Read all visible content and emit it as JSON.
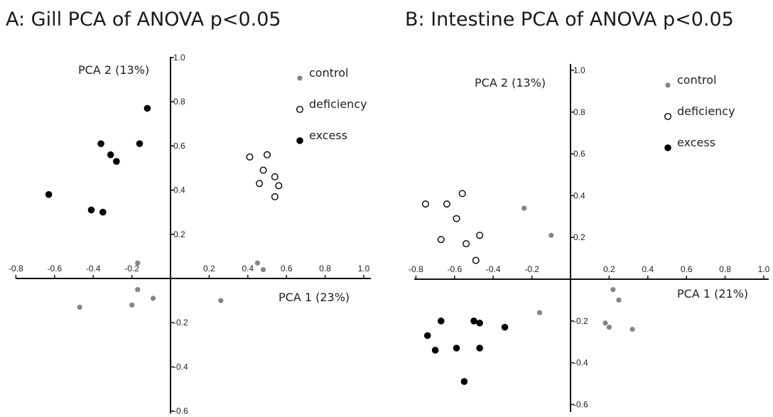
{
  "chart_data": [
    {
      "type": "scatter",
      "title": "A: Gill PCA of ANOVA p<0.05",
      "xlabel": "PCA 1 (23%)",
      "ylabel": "PCA 2 (13%)",
      "xlim": [
        -0.8,
        1.0
      ],
      "ylim": [
        -0.6,
        1.0
      ],
      "x_ticks": [
        "-0.8",
        "-0.6",
        "-0.4",
        "-0.2",
        "0.2",
        "0.4",
        "0.6",
        "0.8",
        "1.0"
      ],
      "x_tick_values": [
        -0.8,
        -0.6,
        -0.4,
        -0.2,
        0.2,
        0.4,
        0.6,
        0.8,
        1.0
      ],
      "y_ticks": [
        "1.0",
        "0.8",
        "0.6",
        "0.4",
        "0.2",
        "-0.2",
        "-0.4",
        "-0.6"
      ],
      "y_tick_values": [
        1.0,
        0.8,
        0.6,
        0.4,
        0.2,
        -0.2,
        -0.4,
        -0.6
      ],
      "grid": false,
      "legend_position": "top-right",
      "series": [
        {
          "name": "control",
          "marker": "gray-dot",
          "points": [
            [
              -0.47,
              -0.13
            ],
            [
              -0.2,
              -0.12
            ],
            [
              -0.17,
              -0.05
            ],
            [
              -0.09,
              -0.09
            ],
            [
              -0.17,
              0.07
            ],
            [
              0.26,
              -0.1
            ],
            [
              0.45,
              0.07
            ],
            [
              0.48,
              0.04
            ]
          ]
        },
        {
          "name": "deficiency",
          "marker": "open-circle",
          "points": [
            [
              0.41,
              0.55
            ],
            [
              0.5,
              0.56
            ],
            [
              0.48,
              0.49
            ],
            [
              0.54,
              0.46
            ],
            [
              0.46,
              0.43
            ],
            [
              0.56,
              0.42
            ],
            [
              0.54,
              0.37
            ]
          ]
        },
        {
          "name": "excess",
          "marker": "filled-circle",
          "points": [
            [
              -0.63,
              0.38
            ],
            [
              -0.41,
              0.31
            ],
            [
              -0.35,
              0.3
            ],
            [
              -0.36,
              0.61
            ],
            [
              -0.31,
              0.56
            ],
            [
              -0.28,
              0.53
            ],
            [
              -0.16,
              0.61
            ],
            [
              -0.12,
              0.77
            ]
          ]
        }
      ]
    },
    {
      "type": "scatter",
      "title": "B: Intestine PCA of ANOVA p<0.05",
      "xlabel": "PCA 1 (21%)",
      "ylabel": "PCA 2 (13%)",
      "xlim": [
        -0.8,
        1.0
      ],
      "ylim": [
        -0.6,
        1.0
      ],
      "x_ticks": [
        "-0.8",
        "-0.6",
        "-0.4",
        "-0.2",
        "0.2",
        "0.4",
        "0.6",
        "0.8",
        "1.0"
      ],
      "x_tick_values": [
        -0.8,
        -0.6,
        -0.4,
        -0.2,
        0.2,
        0.4,
        0.6,
        0.8,
        1.0
      ],
      "y_ticks": [
        "1.0",
        "0.8",
        "0.6",
        "0.4",
        "0.2",
        "-0.2",
        "-0.4",
        "-0.6"
      ],
      "y_tick_values": [
        1.0,
        0.8,
        0.6,
        0.4,
        0.2,
        -0.2,
        -0.4,
        -0.6
      ],
      "grid": false,
      "legend_position": "top-right",
      "series": [
        {
          "name": "control",
          "marker": "gray-dot",
          "points": [
            [
              -0.24,
              0.34
            ],
            [
              -0.1,
              0.21
            ],
            [
              -0.16,
              -0.16
            ],
            [
              0.22,
              -0.05
            ],
            [
              0.25,
              -0.1
            ],
            [
              0.18,
              -0.21
            ],
            [
              0.2,
              -0.23
            ],
            [
              0.32,
              -0.24
            ]
          ]
        },
        {
          "name": "deficiency",
          "marker": "open-circle",
          "points": [
            [
              -0.75,
              0.36
            ],
            [
              -0.64,
              0.36
            ],
            [
              -0.59,
              0.29
            ],
            [
              -0.56,
              0.41
            ],
            [
              -0.67,
              0.19
            ],
            [
              -0.47,
              0.21
            ],
            [
              -0.54,
              0.17
            ],
            [
              -0.49,
              0.09
            ]
          ]
        },
        {
          "name": "excess",
          "marker": "filled-circle",
          "points": [
            [
              -0.74,
              -0.27
            ],
            [
              -0.67,
              -0.2
            ],
            [
              -0.7,
              -0.34
            ],
            [
              -0.59,
              -0.33
            ],
            [
              -0.5,
              -0.2
            ],
            [
              -0.47,
              -0.21
            ],
            [
              -0.47,
              -0.33
            ],
            [
              -0.34,
              -0.23
            ],
            [
              -0.55,
              -0.49
            ]
          ]
        }
      ]
    }
  ]
}
